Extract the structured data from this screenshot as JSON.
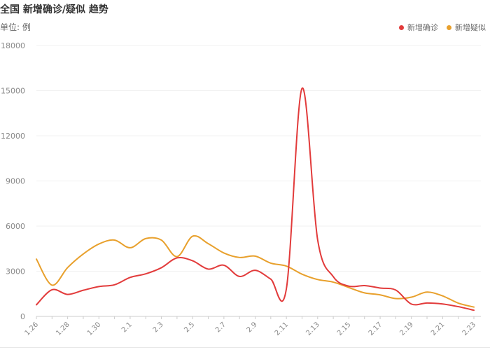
{
  "chart_data": {
    "type": "line",
    "title": "全国 新增确诊/疑似 趋势",
    "unit_label": "单位: 例",
    "x": [
      "1.26",
      "1.27",
      "1.28",
      "1.29",
      "1.30",
      "1.31",
      "2.1",
      "2.2",
      "2.3",
      "2.4",
      "2.5",
      "2.6",
      "2.7",
      "2.8",
      "2.9",
      "2.10",
      "2.11",
      "2.12",
      "2.13",
      "2.14",
      "2.15",
      "2.16",
      "2.17",
      "2.18",
      "2.19",
      "2.20",
      "2.21",
      "2.22",
      "2.23"
    ],
    "x_tick_labels": [
      "1.26",
      "1.28",
      "1.30",
      "2.1",
      "2.3",
      "2.5",
      "2.7",
      "2.9",
      "2.11",
      "2.13",
      "2.15",
      "2.17",
      "2.19",
      "2.21",
      "2.23"
    ],
    "ylim": [
      0,
      18000
    ],
    "y_ticks": [
      0,
      3000,
      6000,
      9000,
      12000,
      15000,
      18000
    ],
    "y_tick_labels": [
      "0",
      "3000",
      "6000",
      "9000",
      "12000",
      "15000",
      "18000"
    ],
    "grid": true,
    "legend_position": "top-right",
    "series": [
      {
        "name": "新增确诊",
        "color": "#e23b3b",
        "values": [
          770,
          1771,
          1459,
          1737,
          1982,
          2102,
          2590,
          2829,
          3235,
          3887,
          3694,
          3143,
          3399,
          2656,
          3062,
          2478,
          1843,
          15152,
          5090,
          2641,
          2009,
          2048,
          1886,
          1749,
          820,
          892,
          826,
          648,
          409
        ]
      },
      {
        "name": "新增疑似",
        "color": "#e8a02c",
        "values": [
          3806,
          2077,
          3248,
          4148,
          4812,
          5072,
          4562,
          5173,
          5072,
          3971,
          5328,
          4833,
          4214,
          3916,
          4008,
          3536,
          3342,
          2807,
          2450,
          2277,
          1918,
          1563,
          1432,
          1185,
          1277,
          1614,
          1361,
          882,
          620
        ]
      }
    ]
  }
}
